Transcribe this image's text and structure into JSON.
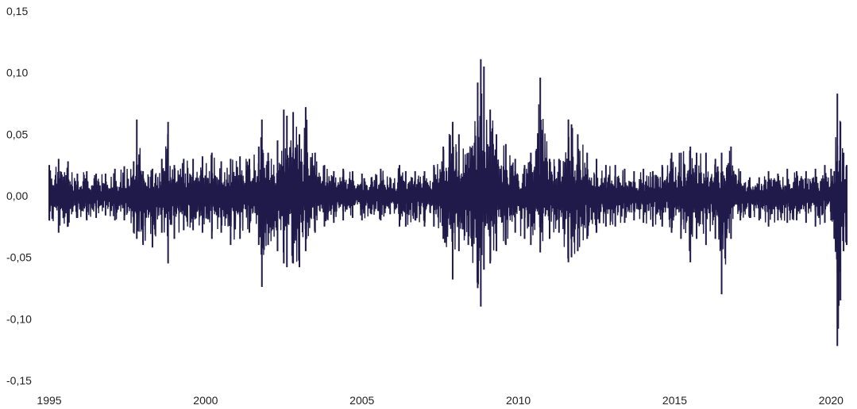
{
  "chart_data": {
    "type": "line",
    "title": "",
    "xlabel": "",
    "ylabel": "",
    "xlim": [
      1995,
      2020.6
    ],
    "ylim": [
      -0.15,
      0.15
    ],
    "grid": false,
    "legend": "none",
    "line_color": "#1f1a4a",
    "x_ticks": [
      {
        "value": 1995,
        "label": "1995"
      },
      {
        "value": 2000,
        "label": "2000"
      },
      {
        "value": 2005,
        "label": "2005"
      },
      {
        "value": 2010,
        "label": "2010"
      },
      {
        "value": 2015,
        "label": "2015"
      },
      {
        "value": 2020,
        "label": "2020"
      }
    ],
    "y_ticks": [
      {
        "value": 0.15,
        "label": "0,15"
      },
      {
        "value": 0.1,
        "label": "0,10"
      },
      {
        "value": 0.05,
        "label": "0,05"
      },
      {
        "value": 0.0,
        "label": "0,00"
      },
      {
        "value": -0.05,
        "label": "-0,05"
      },
      {
        "value": -0.1,
        "label": "-0,10"
      },
      {
        "value": -0.15,
        "label": "-0,15"
      }
    ],
    "series": [
      {
        "x": [
          1995.0,
          1995.3,
          1995.6,
          1995.9,
          1996.2,
          1996.5,
          1996.8,
          1997.1,
          1997.4,
          1997.7,
          1997.8,
          1998.0,
          1998.3,
          1998.6,
          1998.8,
          1999.0,
          1999.3,
          1999.6,
          1999.9,
          2000.2,
          2000.5,
          2000.8,
          2001.1,
          2001.4,
          2001.7,
          2001.8,
          2002.0,
          2002.3,
          2002.5,
          2002.6,
          2002.8,
          2003.0,
          2003.2,
          2003.5,
          2003.8,
          2004.1,
          2004.4,
          2004.7,
          2005.0,
          2005.3,
          2005.6,
          2005.9,
          2006.2,
          2006.4,
          2006.7,
          2007.0,
          2007.3,
          2007.6,
          2007.9,
          2008.1,
          2008.4,
          2008.7,
          2008.8,
          2008.9,
          2009.1,
          2009.3,
          2009.6,
          2009.9,
          2010.2,
          2010.4,
          2010.7,
          2011.0,
          2011.3,
          2011.6,
          2011.7,
          2011.9,
          2012.2,
          2012.5,
          2012.8,
          2013.1,
          2013.4,
          2013.7,
          2014.0,
          2014.3,
          2014.6,
          2014.9,
          2015.2,
          2015.5,
          2015.7,
          2016.0,
          2016.3,
          2016.5,
          2016.8,
          2017.1,
          2017.4,
          2017.7,
          2018.0,
          2018.3,
          2018.6,
          2018.9,
          2019.2,
          2019.5,
          2019.8,
          2020.0,
          2020.1,
          2020.2,
          2020.3,
          2020.4,
          2020.5
        ],
        "high": [
          0.025,
          0.03,
          0.028,
          0.018,
          0.02,
          0.018,
          0.018,
          0.022,
          0.024,
          0.028,
          0.062,
          0.02,
          0.022,
          0.03,
          0.06,
          0.025,
          0.03,
          0.03,
          0.032,
          0.035,
          0.028,
          0.03,
          0.032,
          0.03,
          0.04,
          0.062,
          0.035,
          0.045,
          0.07,
          0.065,
          0.068,
          0.05,
          0.072,
          0.035,
          0.025,
          0.02,
          0.022,
          0.02,
          0.018,
          0.015,
          0.022,
          0.015,
          0.025,
          0.02,
          0.02,
          0.02,
          0.025,
          0.04,
          0.06,
          0.05,
          0.035,
          0.092,
          0.111,
          0.105,
          0.07,
          0.05,
          0.042,
          0.03,
          0.025,
          0.035,
          0.096,
          0.03,
          0.03,
          0.062,
          0.058,
          0.05,
          0.035,
          0.03,
          0.025,
          0.025,
          0.022,
          0.02,
          0.022,
          0.02,
          0.025,
          0.035,
          0.035,
          0.04,
          0.035,
          0.035,
          0.03,
          0.035,
          0.04,
          0.02,
          0.015,
          0.015,
          0.02,
          0.018,
          0.022,
          0.02,
          0.02,
          0.022,
          0.025,
          0.022,
          0.02,
          0.083,
          0.06,
          0.035,
          0.025
        ],
        "low": [
          -0.02,
          -0.03,
          -0.025,
          -0.018,
          -0.02,
          -0.018,
          -0.016,
          -0.02,
          -0.02,
          -0.03,
          -0.035,
          -0.04,
          -0.042,
          -0.03,
          -0.055,
          -0.035,
          -0.028,
          -0.028,
          -0.03,
          -0.035,
          -0.03,
          -0.04,
          -0.035,
          -0.03,
          -0.04,
          -0.074,
          -0.04,
          -0.045,
          -0.055,
          -0.058,
          -0.055,
          -0.058,
          -0.045,
          -0.03,
          -0.025,
          -0.022,
          -0.02,
          -0.018,
          -0.02,
          -0.015,
          -0.02,
          -0.015,
          -0.025,
          -0.025,
          -0.02,
          -0.025,
          -0.025,
          -0.035,
          -0.068,
          -0.045,
          -0.04,
          -0.075,
          -0.09,
          -0.06,
          -0.055,
          -0.045,
          -0.04,
          -0.03,
          -0.035,
          -0.04,
          -0.046,
          -0.035,
          -0.03,
          -0.054,
          -0.05,
          -0.045,
          -0.035,
          -0.03,
          -0.025,
          -0.025,
          -0.022,
          -0.02,
          -0.022,
          -0.025,
          -0.025,
          -0.03,
          -0.035,
          -0.054,
          -0.035,
          -0.04,
          -0.035,
          -0.08,
          -0.035,
          -0.02,
          -0.018,
          -0.02,
          -0.025,
          -0.02,
          -0.022,
          -0.02,
          -0.022,
          -0.025,
          -0.022,
          -0.02,
          -0.035,
          -0.122,
          -0.085,
          -0.045,
          -0.04
        ]
      }
    ]
  }
}
